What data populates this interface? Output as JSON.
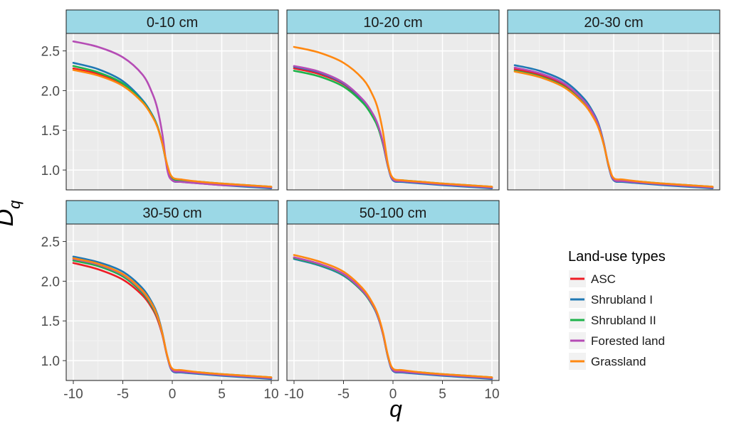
{
  "chart_data": {
    "type": "line",
    "xlabel": "q",
    "ylabel": "D",
    "ylabel_subscript": "q",
    "xlim": [
      -10,
      10
    ],
    "ylim": [
      0.75,
      2.72
    ],
    "x_ticks": [
      -10,
      -5,
      0,
      5,
      10
    ],
    "x_tick_labels": [
      "-10",
      "-5",
      "0",
      "5",
      "10"
    ],
    "y_ticks": [
      1.0,
      1.5,
      2.0,
      2.5
    ],
    "y_tick_labels": [
      "1.0",
      "1.5",
      "2.0",
      "2.5"
    ],
    "legend": {
      "title": "Land-use types",
      "position": "right",
      "items": [
        {
          "label": "ASC",
          "color": "#ee1c25"
        },
        {
          "label": "Shrubland I",
          "color": "#1f78b4"
        },
        {
          "label": "Shrubland II",
          "color": "#1db34a"
        },
        {
          "label": "Forested land",
          "color": "#b54cb5"
        },
        {
          "label": "Grassland",
          "color": "#ff8811"
        }
      ]
    },
    "panels": [
      {
        "title": "0-10 cm",
        "series": [
          {
            "name": "ASC",
            "color": "#ee1c25",
            "q": [
              -10,
              -7.5,
              -5,
              -3,
              -2,
              -1.5,
              -1,
              -0.5,
              0,
              1,
              3,
              5,
              7.5,
              10
            ],
            "Dq": [
              2.28,
              2.21,
              2.08,
              1.86,
              1.68,
              1.55,
              1.33,
              1.05,
              0.89,
              0.86,
              0.84,
              0.82,
              0.8,
              0.78
            ]
          },
          {
            "name": "Shrubland I",
            "color": "#1f78b4",
            "q": [
              -10,
              -7.5,
              -5,
              -3,
              -2,
              -1.5,
              -1,
              -0.5,
              0,
              1,
              3,
              5,
              7.5,
              10
            ],
            "Dq": [
              2.35,
              2.27,
              2.12,
              1.88,
              1.69,
              1.55,
              1.33,
              1.04,
              0.87,
              0.85,
              0.83,
              0.81,
              0.79,
              0.77
            ]
          },
          {
            "name": "Shrubland II",
            "color": "#1db34a",
            "q": [
              -10,
              -7.5,
              -5,
              -3,
              -2,
              -1.5,
              -1,
              -0.5,
              0,
              1,
              3,
              5,
              7.5,
              10
            ],
            "Dq": [
              2.31,
              2.23,
              2.09,
              1.86,
              1.68,
              1.55,
              1.33,
              1.05,
              0.89,
              0.87,
              0.85,
              0.83,
              0.81,
              0.79
            ]
          },
          {
            "name": "Forested land",
            "color": "#b54cb5",
            "q": [
              -10,
              -7.5,
              -5,
              -3,
              -2,
              -1.5,
              -1,
              -0.5,
              0,
              1,
              3,
              5,
              7.5,
              10
            ],
            "Dq": [
              2.62,
              2.55,
              2.42,
              2.2,
              1.96,
              1.77,
              1.45,
              1.0,
              0.87,
              0.85,
              0.83,
              0.81,
              0.8,
              0.78
            ]
          },
          {
            "name": "Grassland",
            "color": "#ff8811",
            "q": [
              -10,
              -7.5,
              -5,
              -3,
              -2,
              -1.5,
              -1,
              -0.5,
              0,
              1,
              3,
              5,
              7.5,
              10
            ],
            "Dq": [
              2.26,
              2.19,
              2.06,
              1.85,
              1.67,
              1.54,
              1.33,
              1.06,
              0.91,
              0.88,
              0.85,
              0.83,
              0.81,
              0.79
            ]
          }
        ]
      },
      {
        "title": "10-20 cm",
        "series": [
          {
            "name": "ASC",
            "color": "#ee1c25",
            "q": [
              -10,
              -7.5,
              -5,
              -3,
              -2,
              -1.5,
              -1,
              -0.5,
              0,
              1,
              3,
              5,
              7.5,
              10
            ],
            "Dq": [
              2.28,
              2.21,
              2.08,
              1.86,
              1.68,
              1.55,
              1.33,
              1.05,
              0.89,
              0.86,
              0.84,
              0.82,
              0.8,
              0.78
            ]
          },
          {
            "name": "Shrubland I",
            "color": "#1f78b4",
            "q": [
              -10,
              -7.5,
              -5,
              -3,
              -2,
              -1.5,
              -1,
              -0.5,
              0,
              1,
              3,
              5,
              7.5,
              10
            ],
            "Dq": [
              2.3,
              2.23,
              2.09,
              1.87,
              1.69,
              1.55,
              1.33,
              1.04,
              0.87,
              0.85,
              0.83,
              0.81,
              0.79,
              0.77
            ]
          },
          {
            "name": "Shrubland II",
            "color": "#1db34a",
            "q": [
              -10,
              -7.5,
              -5,
              -3,
              -2,
              -1.5,
              -1,
              -0.5,
              0,
              1,
              3,
              5,
              7.5,
              10
            ],
            "Dq": [
              2.25,
              2.18,
              2.05,
              1.84,
              1.66,
              1.53,
              1.32,
              1.05,
              0.89,
              0.87,
              0.85,
              0.83,
              0.81,
              0.79
            ]
          },
          {
            "name": "Forested land",
            "color": "#b54cb5",
            "q": [
              -10,
              -7.5,
              -5,
              -3,
              -2,
              -1.5,
              -1,
              -0.5,
              0,
              1,
              3,
              5,
              7.5,
              10
            ],
            "Dq": [
              2.31,
              2.24,
              2.1,
              1.88,
              1.7,
              1.56,
              1.34,
              1.05,
              0.88,
              0.86,
              0.84,
              0.82,
              0.8,
              0.78
            ]
          },
          {
            "name": "Grassland",
            "color": "#ff8811",
            "q": [
              -10,
              -7.5,
              -5,
              -3,
              -2,
              -1.5,
              -1,
              -0.5,
              0,
              1,
              3,
              5,
              7.5,
              10
            ],
            "Dq": [
              2.55,
              2.48,
              2.35,
              2.14,
              1.93,
              1.76,
              1.47,
              1.07,
              0.9,
              0.87,
              0.85,
              0.83,
              0.81,
              0.79
            ]
          }
        ]
      },
      {
        "title": "20-30 cm",
        "series": [
          {
            "name": "ASC",
            "color": "#ee1c25",
            "q": [
              -10,
              -7.5,
              -5,
              -3,
              -2,
              -1.5,
              -1,
              -0.5,
              0,
              1,
              3,
              5,
              7.5,
              10
            ],
            "Dq": [
              2.27,
              2.2,
              2.07,
              1.85,
              1.67,
              1.54,
              1.33,
              1.05,
              0.89,
              0.86,
              0.84,
              0.82,
              0.8,
              0.78
            ]
          },
          {
            "name": "Shrubland I",
            "color": "#1f78b4",
            "q": [
              -10,
              -7.5,
              -5,
              -3,
              -2,
              -1.5,
              -1,
              -0.5,
              0,
              1,
              3,
              5,
              7.5,
              10
            ],
            "Dq": [
              2.32,
              2.25,
              2.12,
              1.9,
              1.71,
              1.57,
              1.34,
              1.04,
              0.87,
              0.85,
              0.83,
              0.81,
              0.79,
              0.77
            ]
          },
          {
            "name": "Shrubland II",
            "color": "#1db34a",
            "q": [
              -10,
              -7.5,
              -5,
              -3,
              -2,
              -1.5,
              -1,
              -0.5,
              0,
              1,
              3,
              5,
              7.5,
              10
            ],
            "Dq": [
              2.25,
              2.18,
              2.05,
              1.84,
              1.66,
              1.53,
              1.32,
              1.05,
              0.89,
              0.87,
              0.85,
              0.83,
              0.81,
              0.79
            ]
          },
          {
            "name": "Forested land",
            "color": "#b54cb5",
            "q": [
              -10,
              -7.5,
              -5,
              -3,
              -2,
              -1.5,
              -1,
              -0.5,
              0,
              1,
              3,
              5,
              7.5,
              10
            ],
            "Dq": [
              2.29,
              2.22,
              2.09,
              1.87,
              1.69,
              1.55,
              1.33,
              1.05,
              0.88,
              0.86,
              0.84,
              0.82,
              0.8,
              0.78
            ]
          },
          {
            "name": "Grassland",
            "color": "#ff8811",
            "q": [
              -10,
              -7.5,
              -5,
              -3,
              -2,
              -1.5,
              -1,
              -0.5,
              0,
              1,
              3,
              5,
              7.5,
              10
            ],
            "Dq": [
              2.24,
              2.17,
              2.04,
              1.83,
              1.65,
              1.52,
              1.32,
              1.06,
              0.9,
              0.88,
              0.85,
              0.83,
              0.81,
              0.79
            ]
          }
        ]
      },
      {
        "title": "30-50 cm",
        "series": [
          {
            "name": "ASC",
            "color": "#ee1c25",
            "q": [
              -10,
              -7.5,
              -5,
              -3,
              -2,
              -1.5,
              -1,
              -0.5,
              0,
              1,
              3,
              5,
              7.5,
              10
            ],
            "Dq": [
              2.23,
              2.15,
              2.02,
              1.82,
              1.65,
              1.52,
              1.32,
              1.05,
              0.89,
              0.86,
              0.84,
              0.82,
              0.8,
              0.78
            ]
          },
          {
            "name": "Shrubland I",
            "color": "#1f78b4",
            "q": [
              -10,
              -7.5,
              -5,
              -3,
              -2,
              -1.5,
              -1,
              -0.5,
              0,
              1,
              3,
              5,
              7.5,
              10
            ],
            "Dq": [
              2.31,
              2.24,
              2.12,
              1.91,
              1.72,
              1.58,
              1.35,
              1.05,
              0.87,
              0.85,
              0.83,
              0.81,
              0.79,
              0.77
            ]
          },
          {
            "name": "Shrubland II",
            "color": "#1db34a",
            "q": [
              -10,
              -7.5,
              -5,
              -3,
              -2,
              -1.5,
              -1,
              -0.5,
              0,
              1,
              3,
              5,
              7.5,
              10
            ],
            "Dq": [
              2.26,
              2.19,
              2.06,
              1.85,
              1.67,
              1.54,
              1.33,
              1.05,
              0.89,
              0.87,
              0.85,
              0.83,
              0.81,
              0.79
            ]
          },
          {
            "name": "Forested land",
            "color": "#b54cb5",
            "q": [
              -10,
              -7.5,
              -5,
              -3,
              -2,
              -1.5,
              -1,
              -0.5,
              0,
              1,
              3,
              5,
              7.5,
              10
            ],
            "Dq": [
              2.28,
              2.21,
              2.08,
              1.87,
              1.69,
              1.55,
              1.33,
              1.05,
              0.88,
              0.86,
              0.84,
              0.82,
              0.8,
              0.78
            ]
          },
          {
            "name": "Grassland",
            "color": "#ff8811",
            "q": [
              -10,
              -7.5,
              -5,
              -3,
              -2,
              -1.5,
              -1,
              -0.5,
              0,
              1,
              3,
              5,
              7.5,
              10
            ],
            "Dq": [
              2.29,
              2.22,
              2.09,
              1.88,
              1.7,
              1.56,
              1.34,
              1.06,
              0.9,
              0.88,
              0.85,
              0.83,
              0.81,
              0.79
            ]
          }
        ]
      },
      {
        "title": "50-100 cm",
        "series": [
          {
            "name": "ASC",
            "color": "#ee1c25",
            "q": [
              -10,
              -7.5,
              -5,
              -3,
              -2,
              -1.5,
              -1,
              -0.5,
              0,
              1,
              3,
              5,
              7.5,
              10
            ],
            "Dq": [
              2.3,
              2.22,
              2.09,
              1.87,
              1.69,
              1.55,
              1.33,
              1.05,
              0.89,
              0.86,
              0.84,
              0.82,
              0.8,
              0.78
            ]
          },
          {
            "name": "Shrubland I",
            "color": "#1f78b4",
            "q": [
              -10,
              -7.5,
              -5,
              -3,
              -2,
              -1.5,
              -1,
              -0.5,
              0,
              1,
              3,
              5,
              7.5,
              10
            ],
            "Dq": [
              2.28,
              2.2,
              2.07,
              1.86,
              1.68,
              1.54,
              1.33,
              1.04,
              0.87,
              0.85,
              0.83,
              0.81,
              0.79,
              0.77
            ]
          },
          {
            "name": "Shrubland II",
            "color": "#1db34a",
            "q": [
              -10,
              -7.5,
              -5,
              -3,
              -2,
              -1.5,
              -1,
              -0.5,
              0,
              1,
              3,
              5,
              7.5,
              10
            ],
            "Dq": [
              2.29,
              2.21,
              2.08,
              1.86,
              1.68,
              1.55,
              1.33,
              1.05,
              0.89,
              0.87,
              0.85,
              0.83,
              0.81,
              0.79
            ]
          },
          {
            "name": "Forested land",
            "color": "#b54cb5",
            "q": [
              -10,
              -7.5,
              -5,
              -3,
              -2,
              -1.5,
              -1,
              -0.5,
              0,
              1,
              3,
              5,
              7.5,
              10
            ],
            "Dq": [
              2.3,
              2.22,
              2.09,
              1.87,
              1.69,
              1.55,
              1.33,
              1.05,
              0.88,
              0.86,
              0.84,
              0.82,
              0.8,
              0.78
            ]
          },
          {
            "name": "Grassland",
            "color": "#ff8811",
            "q": [
              -10,
              -7.5,
              -5,
              -3,
              -2,
              -1.5,
              -1,
              -0.5,
              0,
              1,
              3,
              5,
              7.5,
              10
            ],
            "Dq": [
              2.33,
              2.25,
              2.12,
              1.9,
              1.71,
              1.57,
              1.35,
              1.06,
              0.9,
              0.88,
              0.85,
              0.83,
              0.81,
              0.79
            ]
          }
        ]
      }
    ]
  }
}
